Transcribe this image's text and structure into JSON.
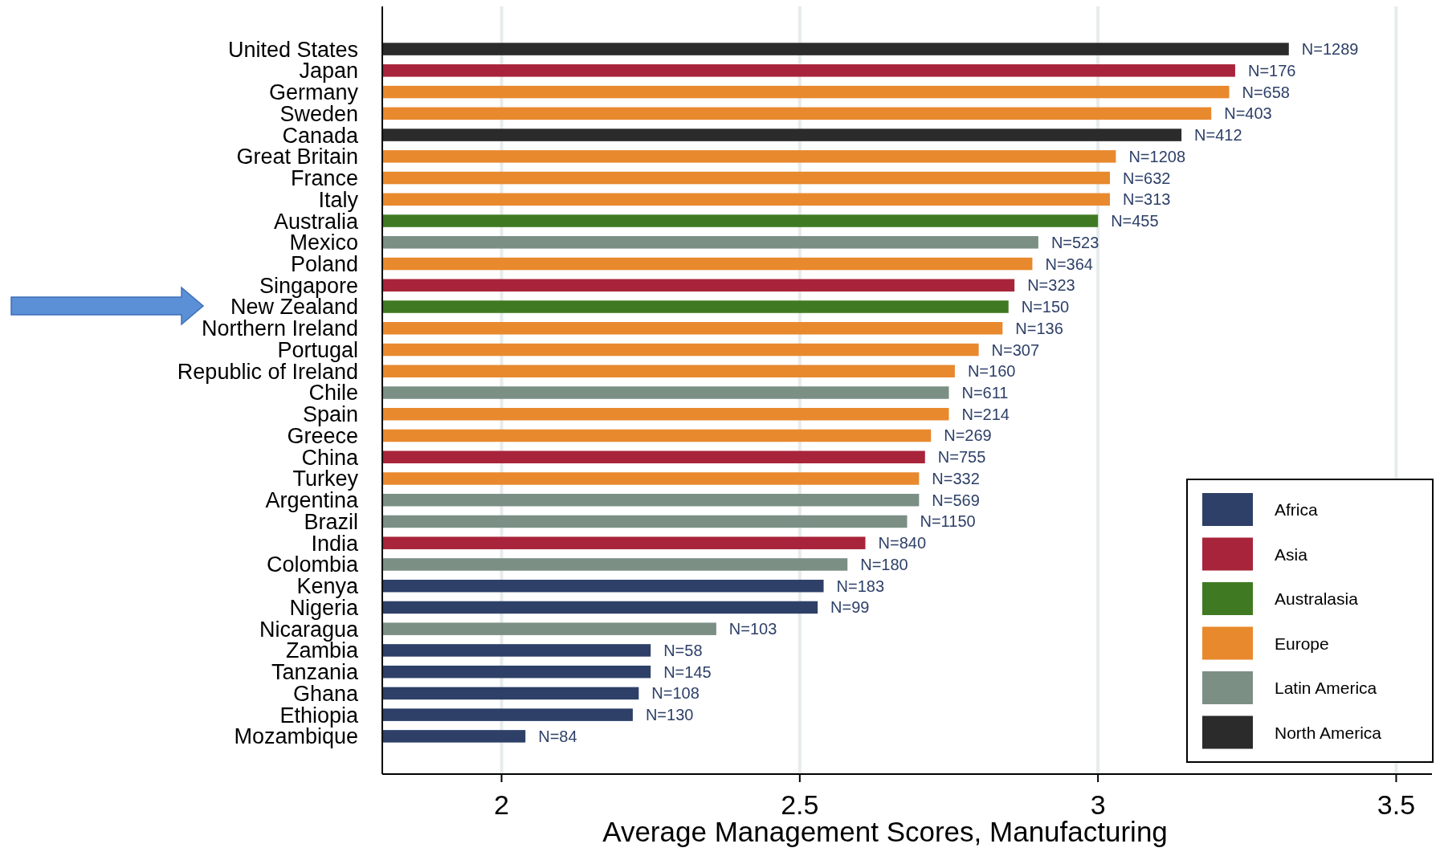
{
  "chart_data": {
    "type": "bar",
    "orientation": "horizontal",
    "xlabel": "Average Management Scores, Manufacturing",
    "categories": [
      "United States",
      "Japan",
      "Germany",
      "Sweden",
      "Canada",
      "Great Britain",
      "France",
      "Italy",
      "Australia",
      "Mexico",
      "Poland",
      "Singapore",
      "New Zealand",
      "Northern Ireland",
      "Portugal",
      "Republic of Ireland",
      "Chile",
      "Spain",
      "Greece",
      "China",
      "Turkey",
      "Argentina",
      "Brazil",
      "India",
      "Colombia",
      "Kenya",
      "Nigeria",
      "Nicaragua",
      "Zambia",
      "Tanzania",
      "Ghana",
      "Ethiopia",
      "Mozambique"
    ],
    "xlim": [
      1.8,
      3.56
    ],
    "xticks": [
      2,
      2.5,
      3,
      3.5
    ],
    "grid": "x",
    "legend": "bottom right",
    "series": [
      {
        "name": "Africa",
        "color": "#2e4068",
        "values": [
          null,
          null,
          null,
          null,
          null,
          null,
          null,
          null,
          null,
          null,
          null,
          null,
          null,
          null,
          null,
          null,
          null,
          null,
          null,
          null,
          null,
          null,
          null,
          null,
          null,
          2.54,
          2.53,
          null,
          2.25,
          2.25,
          2.23,
          2.22,
          2.04
        ]
      },
      {
        "name": "Asia",
        "color": "#a8243a",
        "values": [
          null,
          3.23,
          null,
          null,
          null,
          null,
          null,
          null,
          null,
          null,
          null,
          2.86,
          null,
          null,
          null,
          null,
          null,
          null,
          null,
          2.71,
          null,
          null,
          null,
          2.61,
          null,
          null,
          null,
          null,
          null,
          null,
          null,
          null,
          null
        ]
      },
      {
        "name": "Australasia",
        "color": "#3f7a22",
        "values": [
          null,
          null,
          null,
          null,
          null,
          null,
          null,
          null,
          3.0,
          null,
          null,
          null,
          2.85,
          null,
          null,
          null,
          null,
          null,
          null,
          null,
          null,
          null,
          null,
          null,
          null,
          null,
          null,
          null,
          null,
          null,
          null,
          null,
          null
        ]
      },
      {
        "name": "Europe",
        "color": "#e8892e",
        "values": [
          null,
          null,
          3.22,
          3.19,
          null,
          3.03,
          3.02,
          3.02,
          null,
          null,
          2.89,
          null,
          null,
          2.84,
          2.8,
          2.76,
          null,
          2.75,
          2.72,
          null,
          2.7,
          null,
          null,
          null,
          null,
          null,
          null,
          null,
          null,
          null,
          null,
          null,
          null
        ]
      },
      {
        "name": "Latin America",
        "color": "#7b8f85",
        "values": [
          null,
          null,
          null,
          null,
          null,
          null,
          null,
          null,
          null,
          2.9,
          null,
          null,
          null,
          null,
          null,
          null,
          2.75,
          null,
          null,
          null,
          null,
          2.7,
          2.68,
          null,
          2.58,
          null,
          null,
          2.36,
          null,
          null,
          null,
          null,
          null
        ]
      },
      {
        "name": "North America",
        "color": "#2b2b2b",
        "values": [
          3.32,
          null,
          null,
          null,
          3.14,
          null,
          null,
          null,
          null,
          null,
          null,
          null,
          null,
          null,
          null,
          null,
          null,
          null,
          null,
          null,
          null,
          null,
          null,
          null,
          null,
          null,
          null,
          null,
          null,
          null,
          null,
          null,
          null
        ]
      }
    ],
    "annotations": [
      {
        "text": "N=1289",
        "x": 3.32,
        "y": "United States"
      },
      {
        "text": "N=176",
        "x": 3.23,
        "y": "Japan"
      },
      {
        "text": "N=658",
        "x": 3.22,
        "y": "Germany"
      },
      {
        "text": "N=403",
        "x": 3.19,
        "y": "Sweden"
      },
      {
        "text": "N=412",
        "x": 3.14,
        "y": "Canada"
      },
      {
        "text": "N=1208",
        "x": 3.03,
        "y": "Great Britain"
      },
      {
        "text": "N=632",
        "x": 3.02,
        "y": "France"
      },
      {
        "text": "N=313",
        "x": 3.02,
        "y": "Italy"
      },
      {
        "text": "N=455",
        "x": 3.0,
        "y": "Australia"
      },
      {
        "text": "N=523",
        "x": 2.9,
        "y": "Mexico"
      },
      {
        "text": "N=364",
        "x": 2.89,
        "y": "Poland"
      },
      {
        "text": "N=323",
        "x": 2.86,
        "y": "Singapore"
      },
      {
        "text": "N=150",
        "x": 2.85,
        "y": "New Zealand"
      },
      {
        "text": "N=136",
        "x": 2.84,
        "y": "Northern Ireland"
      },
      {
        "text": "N=307",
        "x": 2.8,
        "y": "Portugal"
      },
      {
        "text": "N=160",
        "x": 2.76,
        "y": "Republic of Ireland"
      },
      {
        "text": "N=611",
        "x": 2.75,
        "y": "Chile"
      },
      {
        "text": "N=214",
        "x": 2.75,
        "y": "Spain"
      },
      {
        "text": "N=269",
        "x": 2.72,
        "y": "Greece"
      },
      {
        "text": "N=755",
        "x": 2.71,
        "y": "China"
      },
      {
        "text": "N=332",
        "x": 2.7,
        "y": "Turkey"
      },
      {
        "text": "N=569",
        "x": 2.7,
        "y": "Argentina"
      },
      {
        "text": "N=1150",
        "x": 2.68,
        "y": "Brazil"
      },
      {
        "text": "N=840",
        "x": 2.61,
        "y": "India"
      },
      {
        "text": "N=180",
        "x": 2.58,
        "y": "Colombia"
      },
      {
        "text": "N=183",
        "x": 2.54,
        "y": "Kenya"
      },
      {
        "text": "N=99",
        "x": 2.53,
        "y": "Nigeria"
      },
      {
        "text": "N=103",
        "x": 2.36,
        "y": "Nicaragua"
      },
      {
        "text": "N=58",
        "x": 2.25,
        "y": "Zambia"
      },
      {
        "text": "N=145",
        "x": 2.25,
        "y": "Tanzania"
      },
      {
        "text": "N=108",
        "x": 2.23,
        "y": "Ghana"
      },
      {
        "text": "N=130",
        "x": 2.22,
        "y": "Ethiopia"
      },
      {
        "text": "N=84",
        "x": 2.04,
        "y": "Mozambique"
      }
    ]
  }
}
